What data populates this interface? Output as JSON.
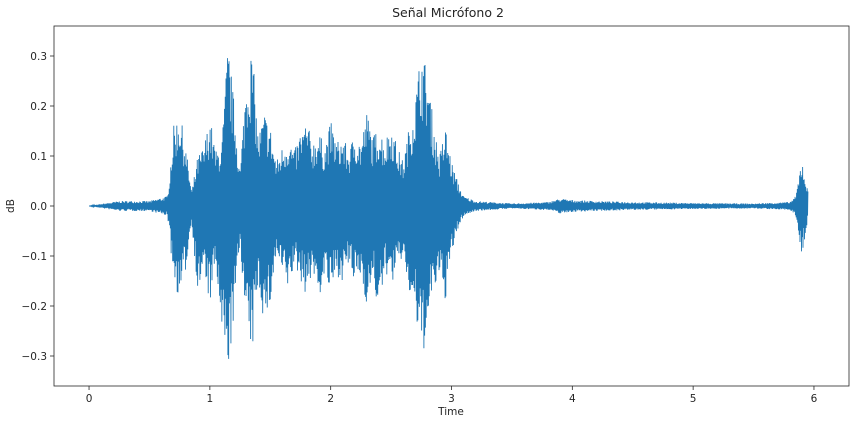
{
  "chart_data": {
    "type": "line",
    "title": "Señal Micrófono 2",
    "xlabel": "Time",
    "ylabel": "dB",
    "xlim": [
      -0.29,
      6.29
    ],
    "ylim": [
      -0.36,
      0.36
    ],
    "xticks": [
      0,
      1,
      2,
      3,
      4,
      5,
      6
    ],
    "yticks": [
      -0.3,
      -0.2,
      -0.1,
      0.0,
      0.1,
      0.2,
      0.3
    ],
    "ytick_labels": [
      "−0.3",
      "−0.2",
      "−0.1",
      "0.0",
      "0.1",
      "0.2",
      "0.3"
    ],
    "grid": false,
    "series": [
      {
        "color": "#1f77b4",
        "envelope_x": [
          0.0,
          0.25,
          0.5,
          0.65,
          0.7,
          0.75,
          0.8,
          0.85,
          0.9,
          0.95,
          1.0,
          1.05,
          1.1,
          1.15,
          1.2,
          1.25,
          1.3,
          1.35,
          1.4,
          1.45,
          1.5,
          1.55,
          1.6,
          1.65,
          1.7,
          1.75,
          1.8,
          1.85,
          1.9,
          1.95,
          2.0,
          2.05,
          2.1,
          2.15,
          2.2,
          2.25,
          2.3,
          2.35,
          2.4,
          2.45,
          2.5,
          2.55,
          2.6,
          2.65,
          2.7,
          2.75,
          2.8,
          2.85,
          2.9,
          2.95,
          3.0,
          3.05,
          3.1,
          3.2,
          3.5,
          3.8,
          3.9,
          4.0,
          4.2,
          4.5,
          5.0,
          5.5,
          5.8,
          5.85,
          5.9,
          5.95
        ],
        "envelope_upper": [
          0.0,
          0.01,
          0.01,
          0.02,
          0.16,
          0.19,
          0.12,
          0.03,
          0.1,
          0.12,
          0.18,
          0.11,
          0.13,
          0.33,
          0.21,
          0.07,
          0.26,
          0.32,
          0.14,
          0.19,
          0.16,
          0.09,
          0.12,
          0.14,
          0.11,
          0.15,
          0.17,
          0.13,
          0.15,
          0.12,
          0.17,
          0.13,
          0.14,
          0.11,
          0.15,
          0.13,
          0.19,
          0.14,
          0.16,
          0.13,
          0.17,
          0.12,
          0.09,
          0.16,
          0.22,
          0.32,
          0.27,
          0.17,
          0.1,
          0.16,
          0.09,
          0.05,
          0.02,
          0.01,
          0.005,
          0.008,
          0.015,
          0.012,
          0.01,
          0.008,
          0.006,
          0.005,
          0.008,
          0.02,
          0.1,
          0.03
        ],
        "envelope_lower": [
          0.0,
          -0.01,
          -0.01,
          -0.02,
          -0.15,
          -0.19,
          -0.13,
          -0.03,
          -0.18,
          -0.13,
          -0.2,
          -0.12,
          -0.28,
          -0.33,
          -0.23,
          -0.07,
          -0.25,
          -0.3,
          -0.15,
          -0.24,
          -0.2,
          -0.1,
          -0.14,
          -0.17,
          -0.12,
          -0.15,
          -0.18,
          -0.13,
          -0.19,
          -0.14,
          -0.18,
          -0.14,
          -0.15,
          -0.12,
          -0.16,
          -0.14,
          -0.2,
          -0.15,
          -0.22,
          -0.13,
          -0.16,
          -0.13,
          -0.1,
          -0.18,
          -0.22,
          -0.31,
          -0.26,
          -0.17,
          -0.15,
          -0.19,
          -0.1,
          -0.05,
          -0.02,
          -0.01,
          -0.005,
          -0.008,
          -0.015,
          -0.012,
          -0.01,
          -0.008,
          -0.006,
          -0.005,
          -0.008,
          -0.02,
          -0.1,
          -0.03
        ]
      }
    ]
  }
}
